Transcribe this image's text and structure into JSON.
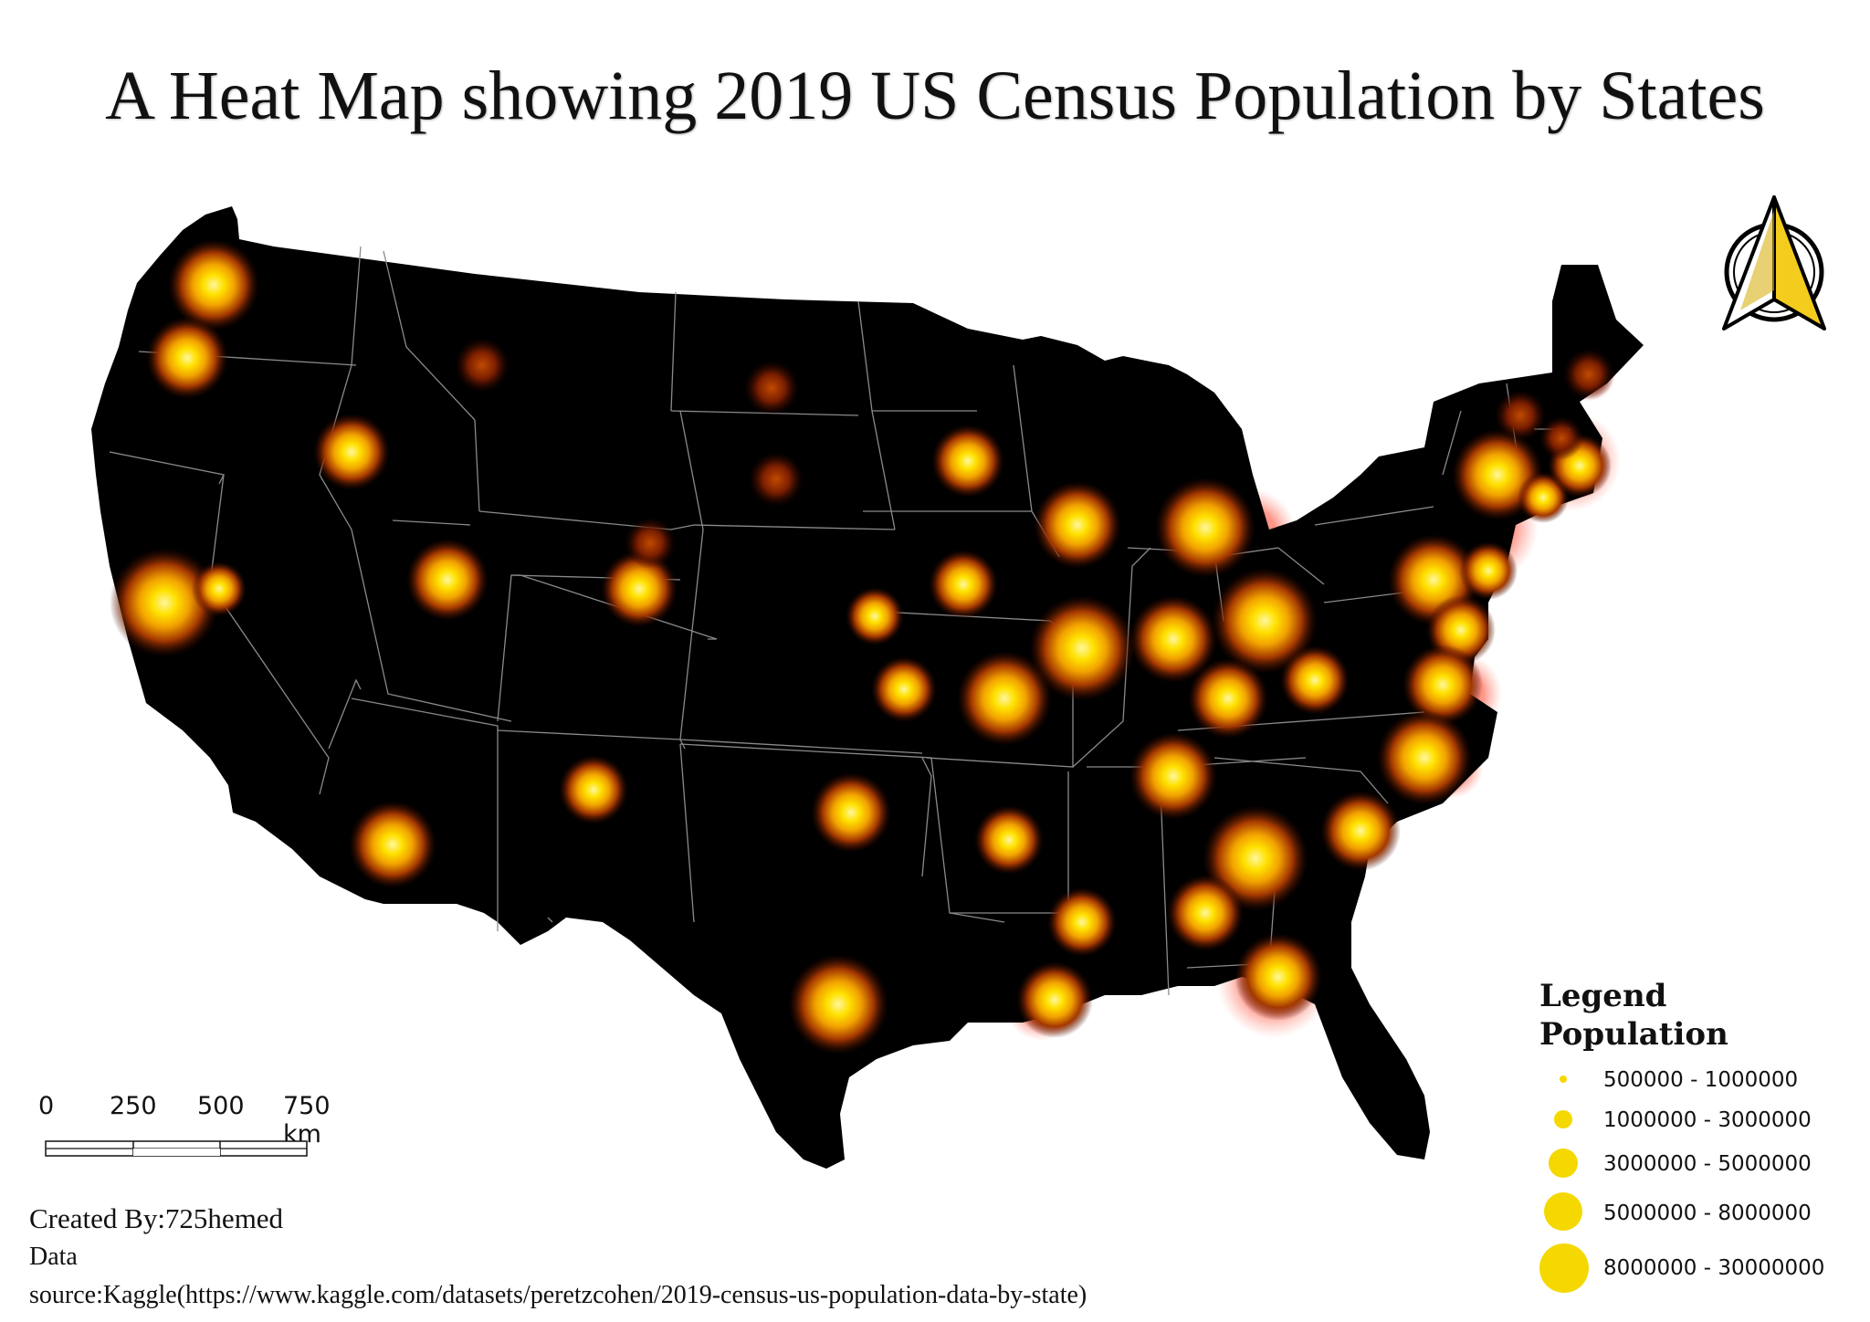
{
  "title": "A Heat Map showing 2019 US Census Population by States",
  "colors": {
    "land": "#000000",
    "border": "#8a8a8a",
    "core": "#ffe100",
    "mid": "#e07a00",
    "edge": "#5a1a00",
    "coastal_glow": "#ff8a7a",
    "legend_dot": "#f4d800"
  },
  "north_arrow": {
    "icon": "north-arrow-icon"
  },
  "scale_bar": {
    "labels": [
      "0",
      "250",
      "500",
      "750 km"
    ]
  },
  "legend": {
    "title": "Legend",
    "subtitle": "Population",
    "classes": [
      {
        "label": "500000 - 1000000"
      },
      {
        "label": "1000000 - 3000000"
      },
      {
        "label": "3000000 - 5000000"
      },
      {
        "label": "5000000 - 8000000"
      },
      {
        "label": "8000000 - 30000000"
      }
    ]
  },
  "credits": {
    "created_by": "Created By:725hemed",
    "data_label": "Data",
    "source": "source:Kaggle(https://www.kaggle.com/datasets/peretzcohen/2019-census-us-population-data-by-state)"
  }
}
